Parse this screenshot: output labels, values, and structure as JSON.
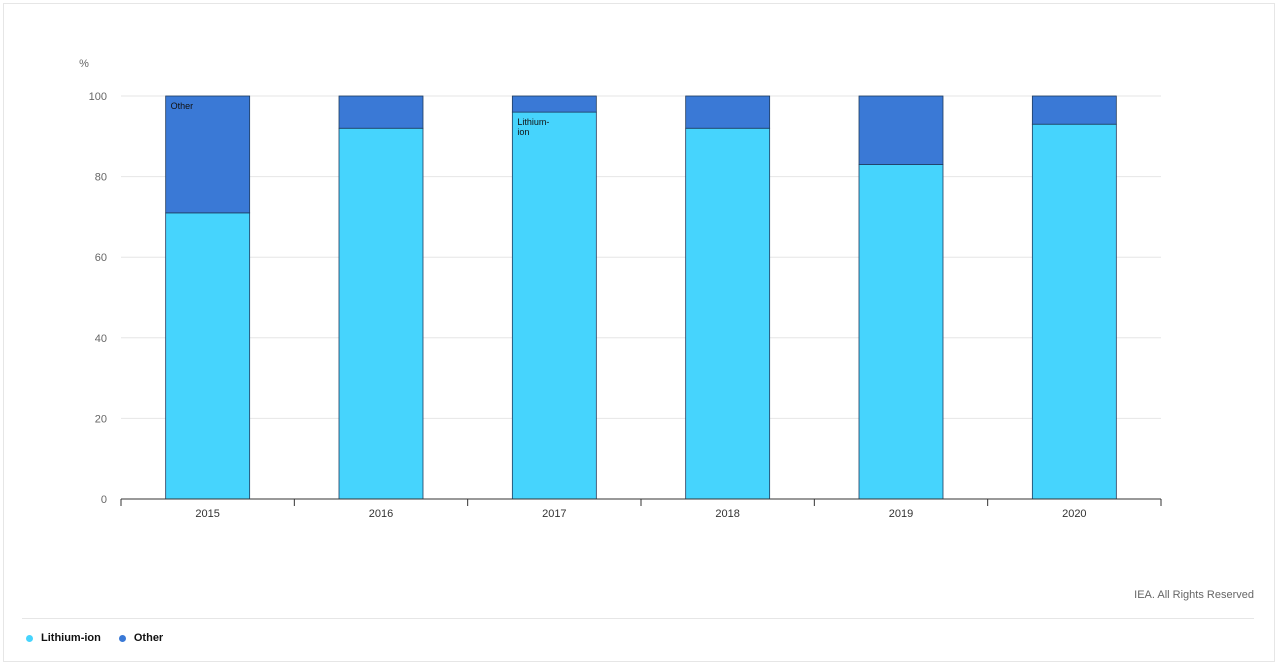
{
  "chart_data": {
    "type": "bar",
    "stacked": true,
    "unit_label": "%",
    "categories": [
      "2015",
      "2016",
      "2017",
      "2018",
      "2019",
      "2020"
    ],
    "series": [
      {
        "name": "Lithium-ion",
        "color": "#46d4fd",
        "values": [
          71,
          92,
          96,
          92,
          83,
          93
        ]
      },
      {
        "name": "Other",
        "color": "#3a79d6",
        "values": [
          29,
          8,
          4,
          8,
          17,
          7
        ]
      }
    ],
    "ylim": [
      0,
      100
    ],
    "yticks": [
      0,
      20,
      40,
      60,
      80,
      100
    ],
    "annotations": [
      {
        "category": "2015",
        "series": "Other",
        "text": "Other"
      },
      {
        "category": "2017",
        "series": "Lithium-ion",
        "lines": [
          "Lithium-",
          "ion"
        ]
      }
    ],
    "grid": true,
    "legend": "bottom-left"
  },
  "credit": "IEA. All Rights Reserved",
  "legend": [
    {
      "label": "Lithium-ion",
      "color": "#46d4fd"
    },
    {
      "label": "Other",
      "color": "#3a79d6"
    }
  ]
}
